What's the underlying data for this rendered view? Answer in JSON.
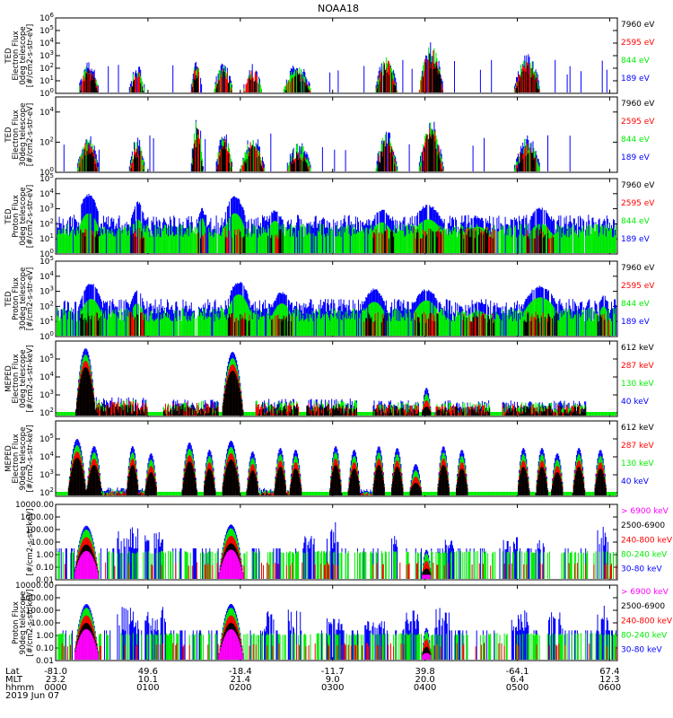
{
  "title": "NOAA18",
  "colors": {
    "black": "#000000",
    "red": "#ff0000",
    "green": "#00ee00",
    "blue": "#0000ff",
    "magenta": "#ff00ff"
  },
  "xaxis": {
    "row_labels": [
      "Lat",
      "MLT",
      "hhmm"
    ],
    "ticks": [
      {
        "t": 0,
        "lat": "-81.0",
        "mlt": "23.2",
        "hhmm": "0000"
      },
      {
        "t": 60,
        "lat": "49.6",
        "mlt": "10.1",
        "hhmm": "0100"
      },
      {
        "t": 120,
        "lat": "-18.4",
        "mlt": "21.4",
        "hhmm": "0200"
      },
      {
        "t": 180,
        "lat": "-11.7",
        "mlt": "9.0",
        "hhmm": "0300"
      },
      {
        "t": 240,
        "lat": "39.8",
        "mlt": "20.0",
        "hhmm": "0400"
      },
      {
        "t": 300,
        "lat": "-64.1",
        "mlt": "6.4",
        "hhmm": "0500"
      },
      {
        "t": 360,
        "lat": "67.4",
        "mlt": "12.3",
        "hhmm": "0600"
      }
    ],
    "date": "2019 Jun 07"
  },
  "chart_data": [
    {
      "type": "line",
      "ylabel": [
        "TED",
        "Electron Flux",
        "0deg telescope",
        "[#/cm2-s-str-eV]"
      ],
      "yscale": "log",
      "ytick_labels": [
        "10^0",
        "10^1",
        "10^2",
        "10^3",
        "10^4",
        "10^5",
        "10^6"
      ],
      "ylim_exp": [
        0,
        6
      ],
      "legend": [
        {
          "label": "7960 eV",
          "color": "#000000"
        },
        {
          "label": "2595 eV",
          "color": "#ff0000"
        },
        {
          "label": "844 eV",
          "color": "#00ee00"
        },
        {
          "label": "189 eV",
          "color": "#0000ff"
        }
      ],
      "bursts": [
        [
          15,
          28,
          2.6
        ],
        [
          48,
          58,
          2.3
        ],
        [
          88,
          95,
          2.8
        ],
        [
          103,
          115,
          2.6
        ],
        [
          122,
          134,
          2.4
        ],
        [
          148,
          166,
          2.4
        ],
        [
          208,
          222,
          3.2
        ],
        [
          236,
          252,
          4.2
        ],
        [
          298,
          315,
          3.2
        ]
      ],
      "base_exp": 0.5
    },
    {
      "type": "line",
      "ylabel": [
        "TED",
        "Electron Flux",
        "30deg telescope",
        "[#/cm2-s-str-eV]"
      ],
      "yscale": "log",
      "ytick_labels": [
        "10^0",
        "10^2",
        "10^4"
      ],
      "ylim_exp": [
        0,
        5
      ],
      "legend": [
        {
          "label": "7960 eV",
          "color": "#000000"
        },
        {
          "label": "2595 eV",
          "color": "#ff0000"
        },
        {
          "label": "844 eV",
          "color": "#00ee00"
        },
        {
          "label": "189 eV",
          "color": "#0000ff"
        }
      ],
      "bursts": [
        [
          14,
          28,
          2.6
        ],
        [
          48,
          58,
          2.4
        ],
        [
          88,
          96,
          3.8
        ],
        [
          104,
          115,
          2.8
        ],
        [
          120,
          136,
          2.6
        ],
        [
          150,
          166,
          2.2
        ],
        [
          208,
          222,
          2.9
        ],
        [
          236,
          252,
          3.6
        ],
        [
          298,
          315,
          2.6
        ]
      ],
      "base_exp": 0.4
    },
    {
      "type": "line",
      "ylabel": [
        "TED",
        "Proton Flux",
        "0deg telescope",
        "[#/cm2-s-str-eV]"
      ],
      "yscale": "log",
      "ytick_labels": [
        "10^0",
        "10^1",
        "10^2",
        "10^3",
        "10^4",
        "10^5"
      ],
      "ylim_exp": [
        0,
        5
      ],
      "legend": [
        {
          "label": "7960 eV",
          "color": "#000000"
        },
        {
          "label": "2595 eV",
          "color": "#ff0000"
        },
        {
          "label": "844 eV",
          "color": "#00ee00"
        },
        {
          "label": "189 eV",
          "color": "#0000ff"
        }
      ],
      "humps": [
        [
          15,
          28,
          3.8,
          2.7
        ],
        [
          49,
          58,
          3.3,
          2.3
        ],
        [
          92,
          98,
          2.9,
          2.4
        ],
        [
          110,
          123,
          3.7,
          2.7
        ],
        [
          137,
          148,
          2.8,
          2.2
        ],
        [
          204,
          220,
          2.8,
          2.1
        ],
        [
          232,
          252,
          3.1,
          2.3
        ],
        [
          263,
          286,
          2.3,
          1.8
        ],
        [
          306,
          324,
          2.9,
          2.0
        ]
      ],
      "base_exp": 1.3
    },
    {
      "type": "line",
      "ylabel": [
        "TED",
        "Proton Flux",
        "30deg telescope",
        "[#/cm2-s-str-eV]"
      ],
      "yscale": "log",
      "ytick_labels": [
        "10^0",
        "10^1",
        "10^2",
        "10^3",
        "10^4",
        "10^5"
      ],
      "ylim_exp": [
        0,
        5
      ],
      "legend": [
        {
          "label": "7960 eV",
          "color": "#000000"
        },
        {
          "label": "2595 eV",
          "color": "#ff0000"
        },
        {
          "label": "844 eV",
          "color": "#00ee00"
        },
        {
          "label": "189 eV",
          "color": "#0000ff"
        }
      ],
      "humps": [
        [
          16,
          30,
          3.4,
          2.5
        ],
        [
          48,
          58,
          3.0,
          2.2
        ],
        [
          112,
          126,
          3.5,
          2.8
        ],
        [
          140,
          154,
          2.8,
          2.2
        ],
        [
          199,
          215,
          3.0,
          2.3
        ],
        [
          232,
          250,
          3.0,
          2.4
        ],
        [
          264,
          285,
          2.2,
          1.7
        ],
        [
          304,
          326,
          3.2,
          2.6
        ],
        [
          352,
          360,
          2.6,
          2.0
        ]
      ],
      "base_exp": 1.2
    },
    {
      "type": "line",
      "ylabel": [
        "MEPED",
        "Electron Flux",
        "0deg telescope",
        "[#/cm2-s-str-keV]"
      ],
      "yscale": "log",
      "ytick_labels": [
        "10^2",
        "10^3",
        "10^4",
        "10^5"
      ],
      "ylim_exp": [
        1.8,
        6
      ],
      "legend": [
        {
          "label": "612 keV",
          "color": "#000000"
        },
        {
          "label": "287 keV",
          "color": "#ff0000"
        },
        {
          "label": "130 keV",
          "color": "#00ee00"
        },
        {
          "label": "40 keV",
          "color": "#0000ff"
        }
      ],
      "peaks": [
        [
          13,
          26,
          5.6
        ],
        [
          108,
          122,
          5.4
        ],
        [
          238,
          244,
          3.4
        ]
      ],
      "noise_ranges": [
        [
          26,
          60,
          2.9
        ],
        [
          70,
          106,
          2.8
        ],
        [
          130,
          158,
          2.8
        ],
        [
          163,
          196,
          2.8
        ],
        [
          206,
          236,
          2.7
        ],
        [
          246,
          282,
          2.7
        ],
        [
          290,
          345,
          2.7
        ]
      ],
      "base_exp": 2.0
    },
    {
      "type": "line",
      "ylabel": [
        "MEPED",
        "Electron Flux",
        "90deg telescope",
        "[#/cm2-s-str-keV]"
      ],
      "yscale": "log",
      "ytick_labels": [
        "10^2",
        "10^3",
        "10^4",
        "10^5"
      ],
      "ylim_exp": [
        1.8,
        6
      ],
      "legend": [
        {
          "label": "612 keV",
          "color": "#000000"
        },
        {
          "label": "287 keV",
          "color": "#ff0000"
        },
        {
          "label": "130 keV",
          "color": "#00ee00"
        },
        {
          "label": "40 keV",
          "color": "#0000ff"
        }
      ],
      "peaks": [
        [
          8,
          20,
          5.0
        ],
        [
          20,
          30,
          4.6
        ],
        [
          46,
          54,
          4.6
        ],
        [
          58,
          66,
          4.2
        ],
        [
          82,
          92,
          4.8
        ],
        [
          96,
          104,
          4.4
        ],
        [
          108,
          120,
          4.9
        ],
        [
          124,
          132,
          4.3
        ],
        [
          142,
          150,
          4.5
        ],
        [
          152,
          160,
          4.4
        ],
        [
          178,
          186,
          4.6
        ],
        [
          190,
          198,
          4.4
        ],
        [
          206,
          214,
          4.6
        ],
        [
          218,
          226,
          4.5
        ],
        [
          230,
          238,
          3.6
        ],
        [
          248,
          256,
          4.6
        ],
        [
          260,
          268,
          4.4
        ],
        [
          300,
          308,
          4.5
        ],
        [
          312,
          320,
          4.5
        ],
        [
          322,
          330,
          4.2
        ],
        [
          336,
          344,
          4.5
        ],
        [
          350,
          358,
          4.4
        ]
      ],
      "noise_ranges": [
        [
          26,
          60,
          2.3
        ],
        [
          130,
          160,
          2.3
        ],
        [
          196,
          206,
          2.2
        ]
      ],
      "base_exp": 2.0
    },
    {
      "type": "line",
      "ylabel": [
        "[#/cm2-s-str-keV]"
      ],
      "yscale": "log",
      "ytick_labels": [
        "10000.00",
        "1000.00",
        "100.00",
        "10.00",
        "1.00",
        "0.10",
        "0.01"
      ],
      "ylim_exp": [
        -2,
        4
      ],
      "legend": [
        {
          "label": "> 6900 keV",
          "color": "#ff00ff"
        },
        {
          "label": "2500-6900",
          "color": "#000000"
        },
        {
          "label": "240-800 keV",
          "color": "#ff0000"
        },
        {
          "label": "80-240 keV",
          "color": "#00ee00"
        },
        {
          "label": "30-80 keV",
          "color": "#0000ff"
        }
      ],
      "domes": [
        [
          12,
          28,
          2.3
        ],
        [
          106,
          122,
          2.4
        ],
        [
          238,
          244,
          0.4
        ]
      ],
      "spikes": [
        [
          40,
          56,
          2.2
        ],
        [
          58,
          70,
          1.8
        ],
        [
          160,
          168,
          1.5
        ],
        [
          176,
          184,
          2.6
        ],
        [
          218,
          222,
          1.7
        ],
        [
          253,
          258,
          1.2
        ],
        [
          290,
          300,
          1.6
        ],
        [
          312,
          318,
          1.2
        ],
        [
          352,
          360,
          2.7
        ]
      ],
      "floor_exp": 0.4
    },
    {
      "type": "line",
      "ylabel": [
        "Proton Flux",
        "90deg telescope",
        "[#/cm2-s-str-keV]"
      ],
      "yscale": "log",
      "ytick_labels": [
        "10000.00",
        "1000.00",
        "100.00",
        "10.00",
        "1.00",
        "0.10",
        "0.01"
      ],
      "ylim_exp": [
        -2,
        4
      ],
      "legend": [
        {
          "label": "> 6900 keV",
          "color": "#ff00ff"
        },
        {
          "label": "2500-6900",
          "color": "#000000"
        },
        {
          "label": "240-800 keV",
          "color": "#ff0000"
        },
        {
          "label": "80-240 keV",
          "color": "#00ee00"
        },
        {
          "label": "30-80 keV",
          "color": "#0000ff"
        }
      ],
      "domes": [
        [
          12,
          28,
          2.5
        ],
        [
          106,
          122,
          2.5
        ],
        [
          238,
          244,
          0.6
        ]
      ],
      "spikes": [
        [
          40,
          56,
          2.3
        ],
        [
          58,
          72,
          2.3
        ],
        [
          134,
          142,
          2.0
        ],
        [
          150,
          160,
          2.2
        ],
        [
          176,
          186,
          1.7
        ],
        [
          200,
          214,
          1.5
        ],
        [
          226,
          236,
          2.1
        ],
        [
          246,
          256,
          2.6
        ],
        [
          296,
          308,
          2.1
        ],
        [
          320,
          330,
          1.9
        ],
        [
          352,
          360,
          2.4
        ]
      ],
      "floor_exp": 0.3
    }
  ]
}
